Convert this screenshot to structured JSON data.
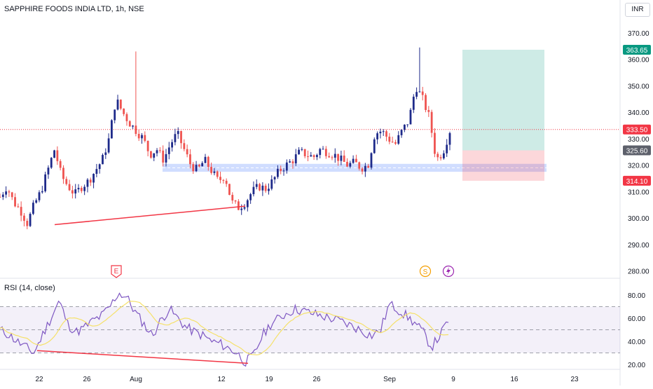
{
  "header": {
    "title": "SAPPHIRE FOODS INDIA LTD, 1h, NSE",
    "currency": "INR"
  },
  "price_badges": {
    "target": "363.65",
    "last": "333.50",
    "entry": "325.60",
    "stop": "314.10"
  },
  "event_markers": {
    "earnings": "E",
    "dividend": "S"
  },
  "chart_data": [
    {
      "type": "candlestick",
      "title": "SAPPHIRE FOODS INDIA LTD, 1h, NSE",
      "xlabel": "",
      "ylabel": "",
      "ylim": [
        275,
        378
      ],
      "y_ticks": [
        "370.00",
        "360.00",
        "350.00",
        "340.00",
        "330.00",
        "320.00",
        "310.00",
        "300.00",
        "290.00",
        "280.00"
      ],
      "x_ticks": [
        "22",
        "26",
        "Aug",
        "12",
        "19",
        "26",
        "Sep",
        "9",
        "16",
        "23"
      ],
      "approx_close_path": [
        308,
        312,
        306,
        303,
        298,
        305,
        310,
        318,
        326,
        316,
        312,
        309,
        312,
        314,
        318,
        322,
        330,
        345,
        340,
        336,
        333,
        330,
        324,
        326,
        322,
        328,
        332,
        326,
        320,
        318,
        322,
        318,
        314,
        316,
        306,
        304,
        306,
        310,
        312,
        311,
        314,
        318,
        320,
        322,
        325,
        324,
        323,
        326,
        325,
        324,
        322,
        320,
        321,
        319,
        320,
        332,
        333,
        330,
        328,
        333,
        337,
        350,
        345,
        338,
        322,
        325,
        333
      ],
      "support_zone": [
        317.5,
        320.5
      ],
      "divergence_line": {
        "from": 297.5,
        "to": 304.5
      },
      "position": {
        "target": 363.65,
        "entry": 325.6,
        "stop": 314.1,
        "last": 333.5
      }
    },
    {
      "type": "line",
      "title": "RSI (14, close)",
      "ylim": [
        18,
        90
      ],
      "y_ticks": [
        "80.00",
        "60.00",
        "40.00",
        "20.00"
      ],
      "bands": [
        30,
        70
      ],
      "approx_values": [
        50,
        46,
        40,
        35,
        30,
        45,
        60,
        75,
        55,
        48,
        52,
        58,
        62,
        70,
        82,
        78,
        65,
        55,
        45,
        58,
        68,
        60,
        52,
        48,
        45,
        40,
        38,
        34,
        30,
        22,
        28,
        45,
        55,
        60,
        65,
        68,
        66,
        64,
        62,
        60,
        58,
        55,
        52,
        48,
        45,
        50,
        72,
        68,
        62,
        56,
        48,
        35,
        45,
        58
      ],
      "divergence_line": {
        "from": 32,
        "to": 21
      }
    }
  ]
}
